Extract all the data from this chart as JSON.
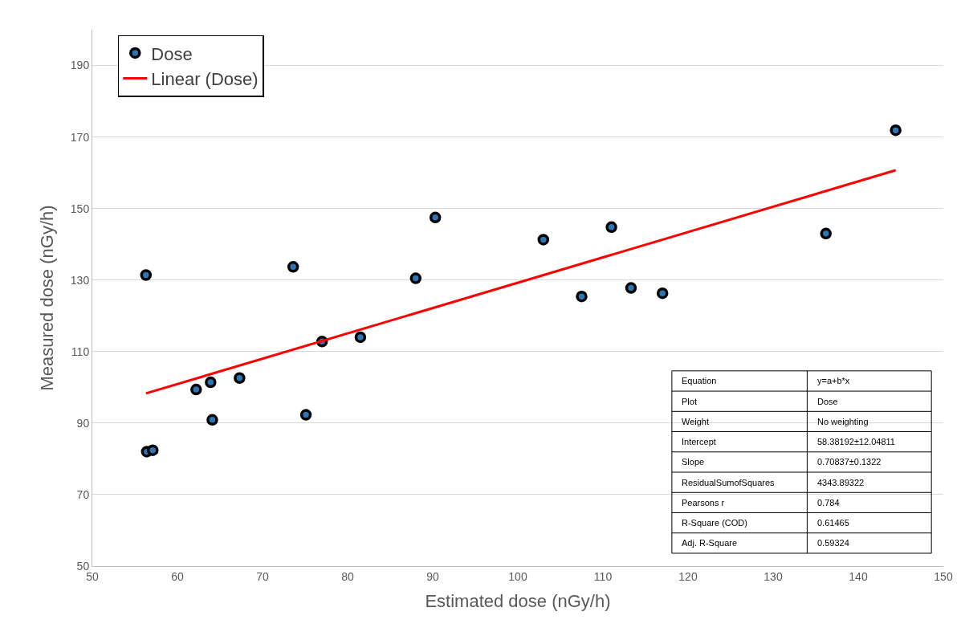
{
  "chart_data": {
    "type": "scatter",
    "xlabel": "Estimated dose (nGy/h)",
    "ylabel": "Measured dose (nGy/h)",
    "x": [
      56.3,
      56.4,
      57.1,
      62.2,
      63.9,
      64.1,
      67.3,
      73.6,
      75.1,
      77.0,
      81.5,
      88.0,
      90.3,
      103.0,
      107.5,
      111.0,
      113.3,
      117.0,
      136.2,
      144.4
    ],
    "series": [
      {
        "name": "Dose",
        "color": "#000000",
        "marker": "circle",
        "values": [
          131.4,
          82.0,
          82.4,
          99.4,
          101.4,
          90.9,
          102.6,
          133.7,
          92.3,
          112.8,
          114.0,
          130.5,
          147.5,
          141.3,
          125.4,
          144.8,
          127.8,
          126.3,
          143.0,
          171.9
        ]
      },
      {
        "name": "Linear (Dose)",
        "color": "#ff0000",
        "type": "line",
        "marker": "none",
        "line_style": "solid",
        "x": [
          56.3,
          144.4
        ],
        "values": [
          98.3,
          160.7
        ]
      }
    ],
    "xlim": [
      50,
      150
    ],
    "xticks": [
      50,
      60,
      70,
      80,
      90,
      100,
      110,
      120,
      130,
      140,
      150
    ],
    "ylim": [
      50,
      200
    ],
    "yticks": [
      50,
      70,
      90,
      110,
      130,
      150,
      170,
      190
    ],
    "grid": "y",
    "legend": "top left",
    "annotations": [
      "Equation",
      "y=a+b*x",
      "Plot",
      "Dose",
      "Weight",
      "No weighting",
      "Intercept",
      "58.38192±12.04811",
      "Slope",
      "0.70837±0.1322",
      "ResidualSumofSquares",
      "4343.89322",
      "Pearsons r",
      "0.784",
      "R-Square (COD)",
      "0.61465",
      "Adj. R-Square",
      "0.59324"
    ]
  }
}
